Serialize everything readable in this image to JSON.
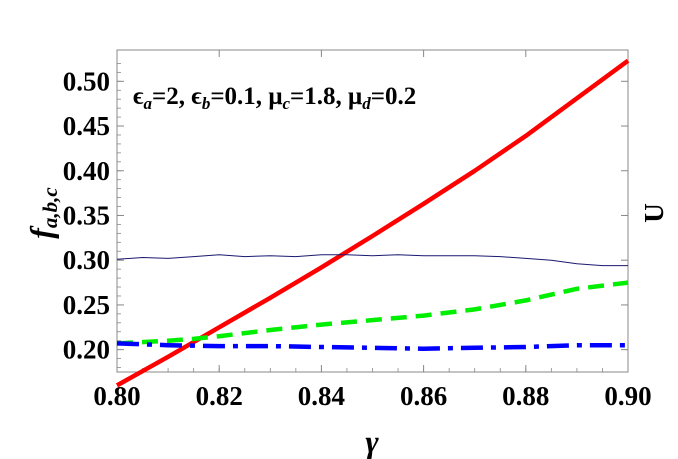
{
  "chart_data": {
    "type": "line",
    "xlabel": "γ",
    "ylabel": "f",
    "ylabel_sub": "a,b,c",
    "right_label": "U",
    "xlim": [
      0.8,
      0.9
    ],
    "ylim": [
      0.175,
      0.535
    ],
    "x_ticks": [
      "0.80",
      "0.82",
      "0.84",
      "0.86",
      "0.88",
      "0.90"
    ],
    "y_ticks": [
      "0.20",
      "0.25",
      "0.30",
      "0.35",
      "0.40",
      "0.45",
      "0.50"
    ],
    "annotation": {
      "parts": [
        {
          "t": "ϵ"
        },
        {
          "t": "a",
          "sub": true
        },
        {
          "t": "=2, "
        },
        {
          "t": "ϵ"
        },
        {
          "t": "b",
          "sub": true
        },
        {
          "t": "=0.1, "
        },
        {
          "t": "μ"
        },
        {
          "t": "c",
          "sub": true
        },
        {
          "t": "=1.8, "
        },
        {
          "t": "μ"
        },
        {
          "t": "d",
          "sub": true
        },
        {
          "t": "=0.2"
        }
      ]
    },
    "series": [
      {
        "color": "#ff0000",
        "style": "solid",
        "width": 4.5,
        "x": [
          0.8,
          0.81,
          0.82,
          0.83,
          0.84,
          0.85,
          0.86,
          0.87,
          0.88,
          0.9
        ],
        "y": [
          0.16,
          0.192,
          0.225,
          0.258,
          0.292,
          0.327,
          0.363,
          0.4,
          0.439,
          0.523
        ]
      },
      {
        "color": "#191970",
        "style": "solid",
        "width": 1,
        "x": [
          0.8,
          0.805,
          0.81,
          0.815,
          0.82,
          0.825,
          0.83,
          0.835,
          0.84,
          0.845,
          0.85,
          0.855,
          0.86,
          0.865,
          0.87,
          0.875,
          0.88,
          0.885,
          0.89,
          0.895,
          0.9
        ],
        "y": [
          0.301,
          0.303,
          0.302,
          0.304,
          0.306,
          0.304,
          0.305,
          0.304,
          0.306,
          0.306,
          0.305,
          0.306,
          0.305,
          0.305,
          0.305,
          0.304,
          0.302,
          0.3,
          0.296,
          0.294,
          0.294
        ]
      },
      {
        "color": "#00ee00",
        "style": "dashed",
        "width": 4.5,
        "x": [
          0.8,
          0.81,
          0.815,
          0.82,
          0.83,
          0.84,
          0.85,
          0.86,
          0.87,
          0.88,
          0.89,
          0.9
        ],
        "y": [
          0.207,
          0.21,
          0.212,
          0.215,
          0.222,
          0.228,
          0.233,
          0.238,
          0.245,
          0.255,
          0.268,
          0.275
        ]
      },
      {
        "color": "#0000ff",
        "style": "dashdot",
        "width": 4.5,
        "x": [
          0.8,
          0.81,
          0.82,
          0.83,
          0.84,
          0.85,
          0.86,
          0.87,
          0.88,
          0.89,
          0.9
        ],
        "y": [
          0.207,
          0.205,
          0.204,
          0.204,
          0.203,
          0.202,
          0.201,
          0.202,
          0.203,
          0.205,
          0.205
        ]
      }
    ]
  }
}
